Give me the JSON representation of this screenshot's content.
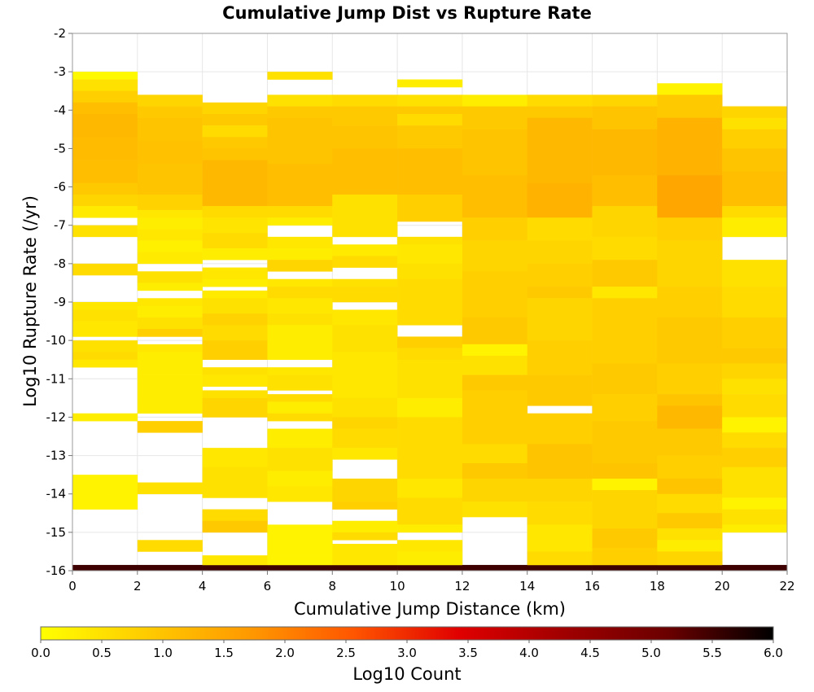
{
  "chart_data": {
    "type": "heatmap",
    "title": "Cumulative Jump Dist vs Rupture Rate",
    "xlabel": "Cumulative Jump Distance (km)",
    "ylabel": "Log10 Rupture Rate (/yr)",
    "xlim": [
      0,
      22
    ],
    "ylim": [
      -16,
      -2
    ],
    "x_ticks": [
      "0",
      "2",
      "4",
      "6",
      "8",
      "10",
      "12",
      "14",
      "16",
      "18",
      "20",
      "22"
    ],
    "y_ticks": [
      "-2",
      "-3",
      "-4",
      "-5",
      "-6",
      "-7",
      "-8",
      "-9",
      "-10",
      "-11",
      "-12",
      "-13",
      "-14",
      "-15",
      "-16"
    ],
    "bin_width_x": 2,
    "bin_height_y": 0.3,
    "colorbar": {
      "label": "Log10 Count",
      "range": [
        0,
        6
      ],
      "ticks": [
        "0.0",
        "0.5",
        "1.0",
        "1.5",
        "2.0",
        "2.5",
        "3.0",
        "3.5",
        "4.0",
        "4.5",
        "5.0",
        "5.5",
        "6.0"
      ],
      "colors": [
        "#ffff00",
        "#ffcc00",
        "#ff9900",
        "#ff5500",
        "#e00000",
        "#a00000",
        "#6a0000",
        "#000000"
      ]
    },
    "grid": true,
    "cells": [
      [
        [
          -3.2,
          -3.0,
          0.1
        ],
        [
          -3.5,
          -3.2,
          0.5
        ],
        [
          -3.8,
          -3.5,
          0.8
        ],
        [
          -4.1,
          -3.8,
          1.1
        ],
        [
          -4.7,
          -4.1,
          1.2
        ],
        [
          -5.3,
          -4.7,
          1.15
        ],
        [
          -5.9,
          -5.3,
          1.1
        ],
        [
          -6.2,
          -5.9,
          0.9
        ],
        [
          -6.5,
          -6.2,
          0.7
        ],
        [
          -6.8,
          -6.5,
          0.35
        ],
        [
          -7.3,
          -7.0,
          0.5
        ],
        [
          -8.3,
          -8.0,
          0.6
        ],
        [
          -9.2,
          -9.0,
          0.4
        ],
        [
          -9.5,
          -9.2,
          0.5
        ],
        [
          -9.9,
          -9.5,
          0.4
        ],
        [
          -10.3,
          -10.0,
          0.5
        ],
        [
          -10.5,
          -10.3,
          0.6
        ],
        [
          -10.7,
          -10.5,
          0.4
        ],
        [
          -12.1,
          -11.9,
          0.3
        ],
        [
          -14.4,
          -13.5,
          0.2
        ],
        [
          -16.0,
          -15.85,
          5.5
        ]
      ],
      [
        [
          -3.9,
          -3.6,
          0.7
        ],
        [
          -4.2,
          -3.9,
          0.9
        ],
        [
          -4.8,
          -4.2,
          1.0
        ],
        [
          -5.4,
          -4.8,
          1.05
        ],
        [
          -6.2,
          -5.4,
          1.0
        ],
        [
          -6.6,
          -6.2,
          0.75
        ],
        [
          -6.8,
          -6.6,
          0.4
        ],
        [
          -7.1,
          -6.8,
          0.3
        ],
        [
          -7.4,
          -7.1,
          0.4
        ],
        [
          -7.7,
          -7.4,
          0.25
        ],
        [
          -8.0,
          -7.7,
          0.35
        ],
        [
          -8.5,
          -8.2,
          0.5
        ],
        [
          -8.7,
          -8.5,
          0.3
        ],
        [
          -9.1,
          -8.9,
          0.4
        ],
        [
          -9.4,
          -9.1,
          0.3
        ],
        [
          -9.7,
          -9.4,
          0.5
        ],
        [
          -9.9,
          -9.7,
          0.8
        ],
        [
          -10.3,
          -10.1,
          0.4
        ],
        [
          -10.9,
          -10.3,
          0.3
        ],
        [
          -11.5,
          -10.9,
          0.3
        ],
        [
          -11.9,
          -11.5,
          0.3
        ],
        [
          -12.4,
          -12.1,
          0.8
        ],
        [
          -14.0,
          -13.7,
          0.5
        ],
        [
          -15.5,
          -15.2,
          0.6
        ],
        [
          -16.0,
          -15.85,
          5.5
        ]
      ],
      [
        [
          -4.1,
          -3.8,
          0.7
        ],
        [
          -4.4,
          -4.1,
          0.9
        ],
        [
          -4.7,
          -4.4,
          0.6
        ],
        [
          -5.0,
          -4.7,
          0.9
        ],
        [
          -5.3,
          -5.0,
          1.0
        ],
        [
          -6.5,
          -5.3,
          1.2
        ],
        [
          -6.8,
          -6.5,
          0.6
        ],
        [
          -7.2,
          -6.8,
          0.45
        ],
        [
          -7.6,
          -7.2,
          0.6
        ],
        [
          -7.9,
          -7.6,
          0.3
        ],
        [
          -8.4,
          -8.1,
          0.4
        ],
        [
          -8.6,
          -8.4,
          0.3
        ],
        [
          -8.9,
          -8.7,
          0.35
        ],
        [
          -9.3,
          -8.9,
          0.5
        ],
        [
          -9.6,
          -9.3,
          0.75
        ],
        [
          -10.0,
          -9.6,
          0.6
        ],
        [
          -10.5,
          -10.0,
          0.8
        ],
        [
          -10.9,
          -10.7,
          0.5
        ],
        [
          -11.2,
          -10.9,
          0.4
        ],
        [
          -11.5,
          -11.3,
          0.5
        ],
        [
          -12.0,
          -11.5,
          0.7
        ],
        [
          -13.3,
          -12.8,
          0.4
        ],
        [
          -13.6,
          -13.3,
          0.5
        ],
        [
          -14.1,
          -13.6,
          0.5
        ],
        [
          -14.7,
          -14.4,
          0.6
        ],
        [
          -15.0,
          -14.7,
          0.9
        ],
        [
          -16.0,
          -15.85,
          5.5
        ],
        [
          -15.85,
          -15.6,
          0.4
        ]
      ],
      [
        [
          -3.2,
          -3.0,
          0.5
        ],
        [
          -3.9,
          -3.6,
          0.5
        ],
        [
          -4.2,
          -3.9,
          0.9
        ],
        [
          -4.8,
          -4.2,
          1.0
        ],
        [
          -5.4,
          -4.8,
          1.0
        ],
        [
          -6.5,
          -5.4,
          1.1
        ],
        [
          -6.8,
          -6.5,
          0.6
        ],
        [
          -7.0,
          -6.8,
          0.3
        ],
        [
          -7.6,
          -7.3,
          0.4
        ],
        [
          -7.9,
          -7.6,
          0.3
        ],
        [
          -8.2,
          -7.9,
          0.7
        ],
        [
          -8.6,
          -8.4,
          0.4
        ],
        [
          -8.9,
          -8.6,
          0.6
        ],
        [
          -9.3,
          -8.9,
          0.4
        ],
        [
          -9.6,
          -9.3,
          0.5
        ],
        [
          -10.5,
          -9.6,
          0.3
        ],
        [
          -10.9,
          -10.7,
          0.4
        ],
        [
          -11.3,
          -10.9,
          0.5
        ],
        [
          -11.6,
          -11.4,
          0.6
        ],
        [
          -11.9,
          -11.6,
          0.3
        ],
        [
          -12.1,
          -11.9,
          0.6
        ],
        [
          -12.8,
          -12.3,
          0.3
        ],
        [
          -13.4,
          -12.8,
          0.5
        ],
        [
          -13.8,
          -13.4,
          0.3
        ],
        [
          -14.2,
          -13.8,
          0.4
        ],
        [
          -15.6,
          -14.8,
          0.2
        ],
        [
          -16.0,
          -15.85,
          5.5
        ],
        [
          -15.85,
          -15.6,
          0.2
        ]
      ],
      [
        [
          -3.9,
          -3.6,
          0.6
        ],
        [
          -4.4,
          -3.9,
          0.9
        ],
        [
          -5.0,
          -4.4,
          1.0
        ],
        [
          -6.2,
          -5.0,
          1.1
        ],
        [
          -6.9,
          -6.2,
          0.5
        ],
        [
          -7.3,
          -6.9,
          0.5
        ],
        [
          -7.8,
          -7.5,
          0.35
        ],
        [
          -8.1,
          -7.8,
          0.6
        ],
        [
          -8.6,
          -8.4,
          0.5
        ],
        [
          -9.0,
          -8.6,
          0.6
        ],
        [
          -9.6,
          -9.2,
          0.4
        ],
        [
          -10.3,
          -9.6,
          0.5
        ],
        [
          -11.5,
          -10.3,
          0.4
        ],
        [
          -12.0,
          -11.5,
          0.5
        ],
        [
          -12.3,
          -12.0,
          0.7
        ],
        [
          -12.8,
          -12.3,
          0.6
        ],
        [
          -13.1,
          -12.8,
          0.4
        ],
        [
          -14.2,
          -13.6,
          0.7
        ],
        [
          -14.4,
          -14.2,
          0.8
        ],
        [
          -15.0,
          -14.7,
          0.3
        ],
        [
          -15.2,
          -15.0,
          0.6
        ],
        [
          -16.0,
          -15.85,
          5.5
        ],
        [
          -15.85,
          -15.3,
          0.4
        ]
      ],
      [
        [
          -3.4,
          -3.2,
          0.3
        ],
        [
          -3.9,
          -3.6,
          0.5
        ],
        [
          -4.1,
          -3.9,
          0.9
        ],
        [
          -4.4,
          -4.1,
          0.6
        ],
        [
          -5.0,
          -4.4,
          0.9
        ],
        [
          -6.2,
          -5.0,
          1.1
        ],
        [
          -6.9,
          -6.2,
          0.8
        ],
        [
          -7.5,
          -7.3,
          0.5
        ],
        [
          -8.0,
          -7.5,
          0.4
        ],
        [
          -8.4,
          -8.0,
          0.5
        ],
        [
          -9.6,
          -8.4,
          0.6
        ],
        [
          -10.2,
          -9.9,
          0.8
        ],
        [
          -10.5,
          -10.2,
          0.6
        ],
        [
          -11.5,
          -10.5,
          0.5
        ],
        [
          -12.0,
          -11.5,
          0.3
        ],
        [
          -13.6,
          -12.0,
          0.6
        ],
        [
          -14.1,
          -13.6,
          0.4
        ],
        [
          -14.8,
          -14.1,
          0.6
        ],
        [
          -15.0,
          -14.8,
          0.3
        ],
        [
          -15.5,
          -15.2,
          0.4
        ],
        [
          -16.0,
          -15.85,
          5.5
        ],
        [
          -15.85,
          -15.5,
          0.3
        ]
      ],
      [
        [
          -3.9,
          -3.6,
          0.3
        ],
        [
          -4.5,
          -3.9,
          0.9
        ],
        [
          -5.7,
          -4.5,
          1.0
        ],
        [
          -6.8,
          -5.7,
          1.1
        ],
        [
          -7.4,
          -6.8,
          0.8
        ],
        [
          -8.2,
          -7.4,
          0.7
        ],
        [
          -9.4,
          -8.2,
          0.8
        ],
        [
          -10.1,
          -9.4,
          0.9
        ],
        [
          -10.4,
          -10.1,
          0.2
        ],
        [
          -10.9,
          -10.4,
          0.5
        ],
        [
          -11.3,
          -10.9,
          0.9
        ],
        [
          -12.7,
          -11.3,
          0.8
        ],
        [
          -13.2,
          -12.7,
          0.6
        ],
        [
          -13.6,
          -13.2,
          0.9
        ],
        [
          -14.2,
          -13.6,
          0.7
        ],
        [
          -14.6,
          -14.2,
          0.5
        ],
        [
          -16.0,
          -15.85,
          5.5
        ]
      ],
      [
        [
          -3.9,
          -3.6,
          0.6
        ],
        [
          -4.2,
          -3.9,
          0.9
        ],
        [
          -5.9,
          -4.2,
          1.2
        ],
        [
          -6.8,
          -5.9,
          1.3
        ],
        [
          -7.4,
          -6.8,
          0.6
        ],
        [
          -8.0,
          -7.4,
          0.7
        ],
        [
          -8.6,
          -8.0,
          0.8
        ],
        [
          -8.9,
          -8.6,
          0.9
        ],
        [
          -10.0,
          -8.9,
          0.7
        ],
        [
          -10.9,
          -10.0,
          0.8
        ],
        [
          -11.7,
          -10.9,
          0.9
        ],
        [
          -12.7,
          -11.9,
          0.8
        ],
        [
          -13.6,
          -12.7,
          1.0
        ],
        [
          -14.2,
          -13.6,
          0.7
        ],
        [
          -14.8,
          -14.2,
          0.6
        ],
        [
          -15.5,
          -14.8,
          0.4
        ],
        [
          -16.0,
          -15.85,
          5.5
        ],
        [
          -15.85,
          -15.5,
          0.6
        ]
      ],
      [
        [
          -3.9,
          -3.6,
          0.7
        ],
        [
          -4.5,
          -3.9,
          1.0
        ],
        [
          -5.7,
          -4.5,
          1.2
        ],
        [
          -6.5,
          -5.7,
          1.1
        ],
        [
          -7.3,
          -6.5,
          0.7
        ],
        [
          -7.9,
          -7.3,
          0.6
        ],
        [
          -8.6,
          -7.9,
          0.9
        ],
        [
          -8.9,
          -8.6,
          0.4
        ],
        [
          -9.6,
          -8.9,
          0.8
        ],
        [
          -10.6,
          -9.6,
          0.8
        ],
        [
          -11.4,
          -10.6,
          0.9
        ],
        [
          -12.1,
          -11.4,
          0.8
        ],
        [
          -13.2,
          -12.1,
          0.9
        ],
        [
          -13.6,
          -13.2,
          1.0
        ],
        [
          -13.9,
          -13.6,
          0.2
        ],
        [
          -14.3,
          -13.9,
          0.7
        ],
        [
          -14.9,
          -14.3,
          0.7
        ],
        [
          -15.4,
          -14.9,
          0.9
        ],
        [
          -16.0,
          -15.85,
          5.5
        ],
        [
          -15.85,
          -15.4,
          0.8
        ]
      ],
      [
        [
          -3.6,
          -3.3,
          0.2
        ],
        [
          -4.2,
          -3.6,
          0.9
        ],
        [
          -5.7,
          -4.2,
          1.3
        ],
        [
          -6.8,
          -5.7,
          1.5
        ],
        [
          -7.4,
          -6.8,
          0.8
        ],
        [
          -8.6,
          -7.4,
          0.7
        ],
        [
          -9.4,
          -8.6,
          0.8
        ],
        [
          -10.6,
          -9.4,
          0.9
        ],
        [
          -11.4,
          -10.6,
          0.8
        ],
        [
          -11.7,
          -11.4,
          1.0
        ],
        [
          -12.3,
          -11.7,
          1.2
        ],
        [
          -13.0,
          -12.3,
          0.9
        ],
        [
          -13.6,
          -13.0,
          0.8
        ],
        [
          -14.0,
          -13.6,
          1.0
        ],
        [
          -14.5,
          -14.0,
          0.6
        ],
        [
          -14.9,
          -14.5,
          0.9
        ],
        [
          -15.2,
          -14.9,
          0.5
        ],
        [
          -15.5,
          -15.2,
          0.3
        ],
        [
          -16.0,
          -15.85,
          5.5
        ],
        [
          -15.85,
          -15.5,
          0.7
        ]
      ],
      [
        [
          -4.2,
          -3.9,
          0.7
        ],
        [
          -4.5,
          -4.2,
          0.5
        ],
        [
          -5.0,
          -4.5,
          0.8
        ],
        [
          -5.6,
          -5.0,
          1.0
        ],
        [
          -6.5,
          -5.6,
          1.1
        ],
        [
          -6.8,
          -6.5,
          0.6
        ],
        [
          -7.3,
          -6.8,
          0.3
        ],
        [
          -8.6,
          -7.9,
          0.5
        ],
        [
          -9.4,
          -8.6,
          0.6
        ],
        [
          -10.2,
          -9.4,
          0.8
        ],
        [
          -10.6,
          -10.2,
          0.9
        ],
        [
          -11.0,
          -10.6,
          0.7
        ],
        [
          -11.4,
          -11.0,
          0.5
        ],
        [
          -12.0,
          -11.4,
          0.6
        ],
        [
          -12.4,
          -12.0,
          0.2
        ],
        [
          -12.8,
          -12.4,
          0.6
        ],
        [
          -13.3,
          -12.8,
          0.8
        ],
        [
          -14.1,
          -13.3,
          0.5
        ],
        [
          -14.4,
          -14.1,
          0.2
        ],
        [
          -14.8,
          -14.4,
          0.5
        ],
        [
          -15.0,
          -14.8,
          0.3
        ],
        [
          -16.0,
          -15.85,
          5.5
        ]
      ]
    ]
  }
}
